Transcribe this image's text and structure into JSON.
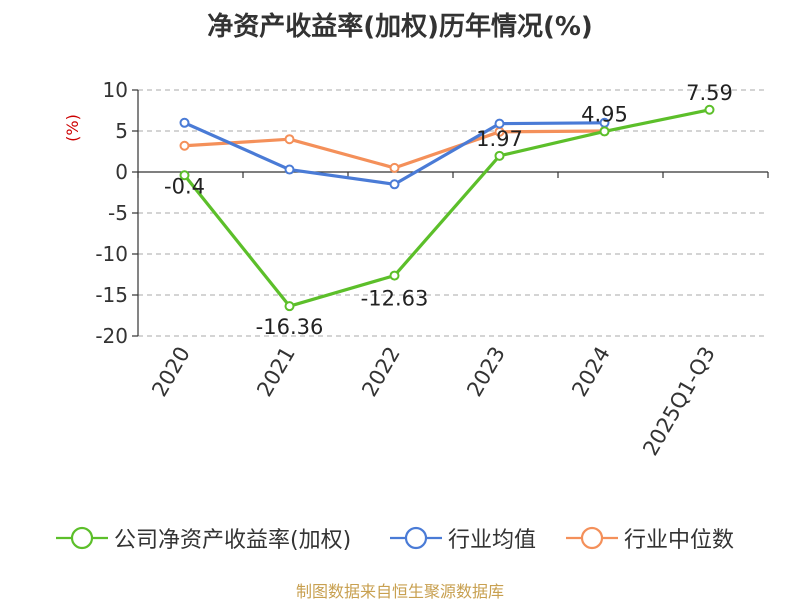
{
  "chart_data": {
    "type": "line",
    "title": "净资产收益率(加权)历年情况(%)",
    "ylabel": "(%)",
    "categories": [
      "2020",
      "2021",
      "2022",
      "2023",
      "2024",
      "2025Q1-Q3"
    ],
    "ylim": [
      -20,
      10
    ],
    "yticks": [
      10,
      5,
      0,
      -5,
      -10,
      -15,
      -20
    ],
    "grid": true,
    "legend_position": "bottom",
    "series": [
      {
        "name": "公司净资产收益率(加权)",
        "color": "#5cbf2a",
        "values": [
          -0.4,
          -16.36,
          -12.63,
          1.97,
          4.95,
          7.59
        ],
        "labels": [
          "-0.4",
          "-16.36",
          "-12.63",
          "1.97",
          "4.95",
          "7.59"
        ]
      },
      {
        "name": "行业均值",
        "color": "#4a7bd6",
        "values": [
          6.0,
          0.3,
          -1.5,
          5.9,
          6.0,
          null
        ]
      },
      {
        "name": "行业中位数",
        "color": "#f4905a",
        "values": [
          3.2,
          4.0,
          0.5,
          4.9,
          5.0,
          null
        ]
      }
    ]
  },
  "source_text": "制图数据来自恒生聚源数据库"
}
